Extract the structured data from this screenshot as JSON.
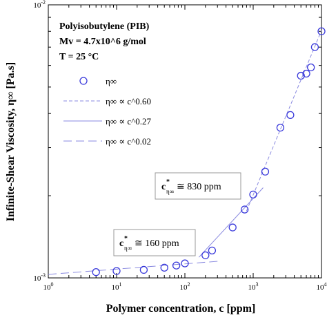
{
  "chart_data": {
    "type": "scatter",
    "xscale": "log",
    "yscale": "log",
    "xlim": [
      1,
      10000
    ],
    "ylim": [
      0.001,
      0.01
    ],
    "xlabel": "Polymer concentration, c [ppm]",
    "ylabel": "Infinite-Shear Viscosity, η∞ [Pa.s]",
    "x_ticks": [
      "10^0",
      "10^1",
      "10^2",
      "10^3",
      "10^4"
    ],
    "y_ticks": [
      "10^-3",
      "10^-2"
    ],
    "info_box": {
      "line1": "Polyisobutylene (PIB)",
      "line2": "Mv = 4.7x10^6 g/mol",
      "line3": "T = 25 °C"
    },
    "series": [
      {
        "name": "η∞",
        "style": "open-circle",
        "color": "#3a3adb",
        "x": [
          5,
          10,
          25,
          50,
          75,
          100,
          200,
          250,
          500,
          750,
          1000,
          1500,
          2500,
          3500,
          5000,
          6000,
          7000,
          8000,
          10000
        ],
        "y": [
          0.00105,
          0.00106,
          0.00107,
          0.00109,
          0.00111,
          0.00113,
          0.00121,
          0.00126,
          0.00153,
          0.00178,
          0.00202,
          0.00245,
          0.00355,
          0.00395,
          0.0055,
          0.0056,
          0.0059,
          0.007,
          0.008
        ]
      },
      {
        "name": "η∞ ∝ c^0.60",
        "style": "dashed",
        "color": "#8a8ae0",
        "x": [
          800,
          10000
        ],
        "y": [
          0.00176,
          0.00806
        ]
      },
      {
        "name": "η∞ ∝ c^0.27",
        "style": "solid",
        "color": "#8a8ae0",
        "x": [
          160,
          1400
        ],
        "y": [
          0.00119,
          0.00214
        ]
      },
      {
        "name": "η∞ ∝ c^0.02",
        "style": "long-dash",
        "color": "#8a8ae0",
        "x": [
          1,
          300
        ],
        "y": [
          0.00103,
          0.00115
        ]
      }
    ],
    "annotations": [
      {
        "main": "c",
        "sup": "*",
        "sub": "η∞",
        "text": "≅ 830 ppm"
      },
      {
        "main": "c",
        "sup": "*",
        "sub": "η∞",
        "text": "≅ 160 ppm"
      }
    ]
  }
}
